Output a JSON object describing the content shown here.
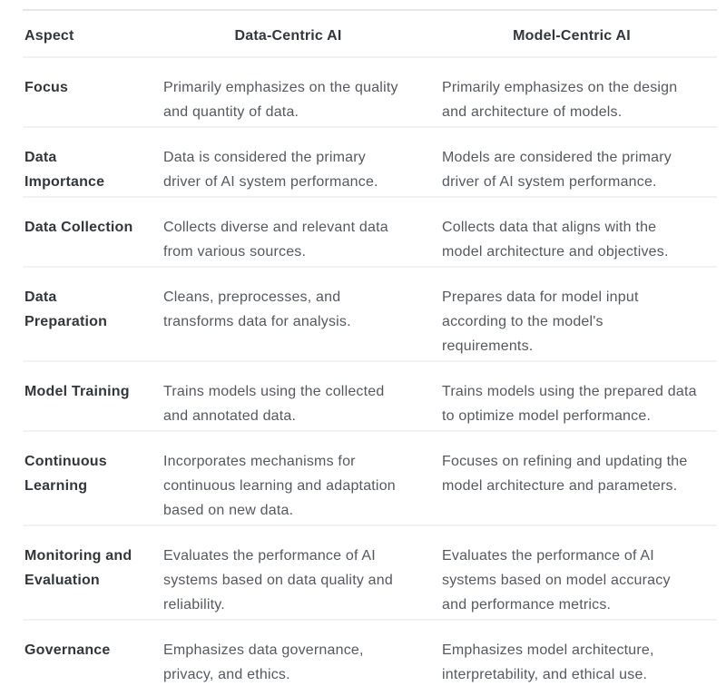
{
  "table": {
    "columns": [
      {
        "label": "Aspect"
      },
      {
        "label": "Data-Centric AI"
      },
      {
        "label": "Model-Centric AI"
      }
    ],
    "rows": [
      {
        "aspect": "Focus",
        "data_centric": "Primarily emphasizes on the quality\nand quantity of data.",
        "model_centric": "Primarily emphasizes on the design\nand architecture of models."
      },
      {
        "aspect": "Data\nImportance",
        "data_centric": "Data is considered the primary\ndriver of AI system performance.",
        "model_centric": "Models are considered the primary\ndriver of AI system performance."
      },
      {
        "aspect": "Data Collection",
        "data_centric": "Collects diverse and relevant data\nfrom various sources.",
        "model_centric": "Collects data that aligns with the\nmodel architecture and objectives."
      },
      {
        "aspect": "Data\nPreparation",
        "data_centric": "Cleans, preprocesses, and\ntransforms data for analysis.",
        "model_centric": "Prepares data for model input\naccording to the model's\nrequirements."
      },
      {
        "aspect": "Model Training",
        "data_centric": "Trains models using the collected\nand annotated data.",
        "model_centric": "Trains models using the prepared data\nto optimize model performance."
      },
      {
        "aspect": "Continuous\nLearning",
        "data_centric": "Incorporates mechanisms for\ncontinuous learning and adaptation\nbased on new data.",
        "model_centric": "Focuses on refining and updating the\nmodel architecture and parameters."
      },
      {
        "aspect": "Monitoring and\nEvaluation",
        "data_centric": "Evaluates the performance of AI\nsystems based on data quality and\nreliability.",
        "model_centric": "Evaluates the performance of AI\nsystems based on model accuracy\nand performance metrics."
      },
      {
        "aspect": "Governance",
        "data_centric": "Emphasizes data governance,\nprivacy, and ethics.",
        "model_centric": "Emphasizes model architecture,\ninterpretability, and ethical use."
      }
    ]
  },
  "colors": {
    "header_text": "#32373c",
    "body_text": "#54595f",
    "top_border": "#e6e6e6",
    "row_border": "#f2f2f2",
    "background": "#ffffff"
  }
}
